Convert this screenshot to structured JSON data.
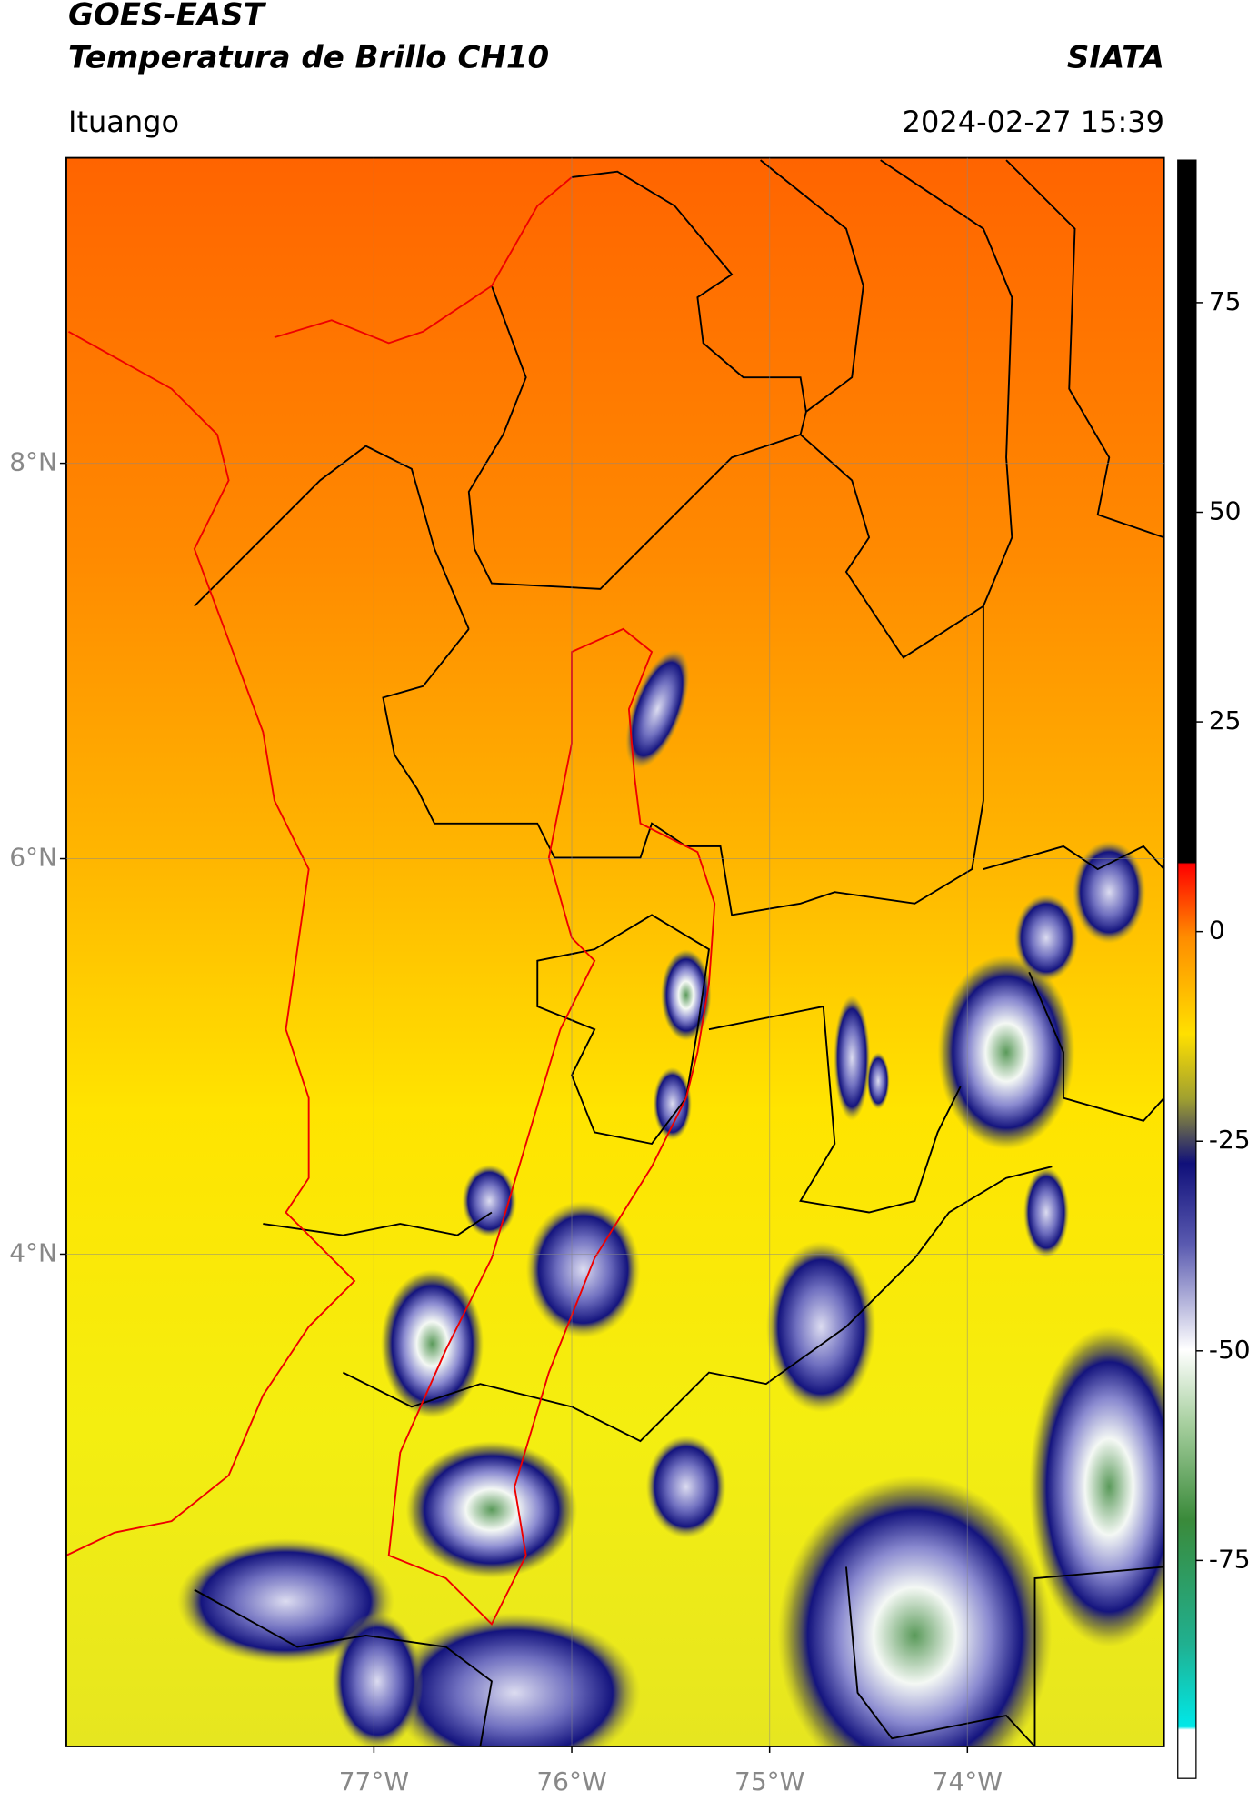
{
  "header": {
    "title": "GOES-EAST",
    "subtitle": "Temperatura de Brillo CH10",
    "brand": "SIATA",
    "location": "Ituango",
    "datetime": "2024-02-27 15:39"
  },
  "map": {
    "xlim": [
      -78.555,
      -73.006
    ],
    "ylim": [
      1.51,
      9.545
    ],
    "xticks": [
      {
        "value": -77,
        "label": "77°W"
      },
      {
        "value": -76,
        "label": "76°W"
      },
      {
        "value": -75,
        "label": "75°W"
      },
      {
        "value": -74,
        "label": "74°W"
      }
    ],
    "yticks": [
      {
        "value": 8,
        "label": "8°N"
      },
      {
        "value": 6,
        "label": "6°N"
      },
      {
        "value": 4,
        "label": "4°N"
      }
    ],
    "grid": true
  },
  "colorbar": {
    "clim": [
      -101,
      92
    ],
    "ticks": [
      75,
      50,
      25,
      0,
      -25,
      -50,
      -75
    ]
  }
}
